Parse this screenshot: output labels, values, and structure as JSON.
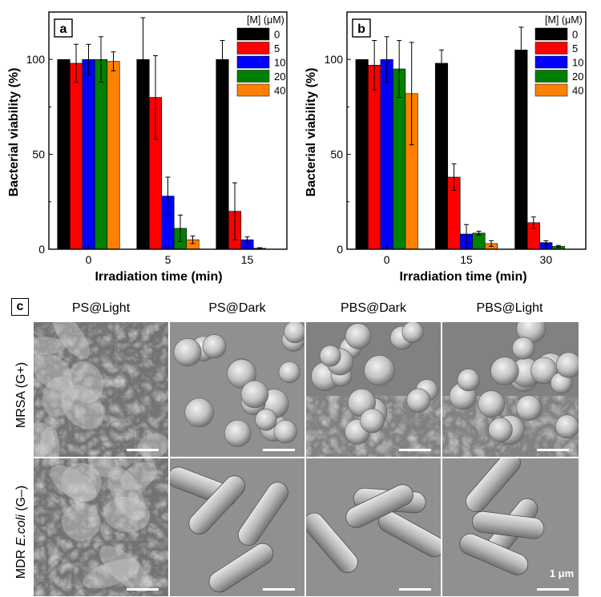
{
  "chart_data": [
    {
      "type": "bar",
      "panel_label": "a",
      "categories": [
        "0",
        "5",
        "15"
      ],
      "xlabel": "Irradiation time (min)",
      "ylabel": "Bacterial viability (%)",
      "ylim": [
        0,
        125
      ],
      "yticks": [
        "0",
        "50",
        "100"
      ],
      "legend_title": "[M] (μM)",
      "legend_position": "top-right",
      "series": [
        {
          "name": "0",
          "color": "#000000",
          "values": [
            100,
            100,
            100
          ],
          "errors": [
            0,
            22,
            10
          ]
        },
        {
          "name": "5",
          "color": "#ff0000",
          "values": [
            98,
            80,
            20
          ],
          "errors": [
            10,
            22,
            15
          ]
        },
        {
          "name": "10",
          "color": "#0000ff",
          "values": [
            100,
            28,
            5
          ],
          "errors": [
            8,
            10,
            1.5
          ]
        },
        {
          "name": "20",
          "color": "#008000",
          "values": [
            100,
            11,
            0.5
          ],
          "errors": [
            12,
            7,
            0.3
          ]
        },
        {
          "name": "40",
          "color": "#ff8000",
          "values": [
            99,
            5,
            0
          ],
          "errors": [
            5,
            2,
            0
          ]
        }
      ]
    },
    {
      "type": "bar",
      "panel_label": "b",
      "categories": [
        "0",
        "15",
        "30"
      ],
      "xlabel": "Irradiation time (min)",
      "ylabel": "Bacterial viability (%)",
      "ylim": [
        0,
        125
      ],
      "yticks": [
        "0",
        "50",
        "100"
      ],
      "legend_title": "[M] (μM)",
      "legend_position": "top-right",
      "series": [
        {
          "name": "0",
          "color": "#000000",
          "values": [
            100,
            98,
            105
          ],
          "errors": [
            0,
            7,
            12
          ]
        },
        {
          "name": "5",
          "color": "#ff0000",
          "values": [
            97,
            38,
            14
          ],
          "errors": [
            13,
            7,
            3
          ]
        },
        {
          "name": "10",
          "color": "#0000ff",
          "values": [
            100,
            8,
            3.5
          ],
          "errors": [
            12,
            5,
            1
          ]
        },
        {
          "name": "20",
          "color": "#008000",
          "values": [
            95,
            8.5,
            1.5
          ],
          "errors": [
            15,
            1,
            0.5
          ]
        },
        {
          "name": "40",
          "color": "#ff8000",
          "values": [
            82,
            3,
            0
          ],
          "errors": [
            27,
            1.5,
            0
          ]
        }
      ]
    }
  ],
  "sem_figure": {
    "panel_label": "c",
    "columns": [
      "PS@Light",
      "PS@Dark",
      "PBS@Dark",
      "PBS@Light"
    ],
    "rows": [
      {
        "label_prefix": "",
        "label_italic": "",
        "label_suffix": "MRSA (G+)"
      },
      {
        "label_prefix": "MDR ",
        "label_italic": "E.coli",
        "label_suffix": " (G–)"
      }
    ],
    "scale_bar_label": "1 μm"
  }
}
